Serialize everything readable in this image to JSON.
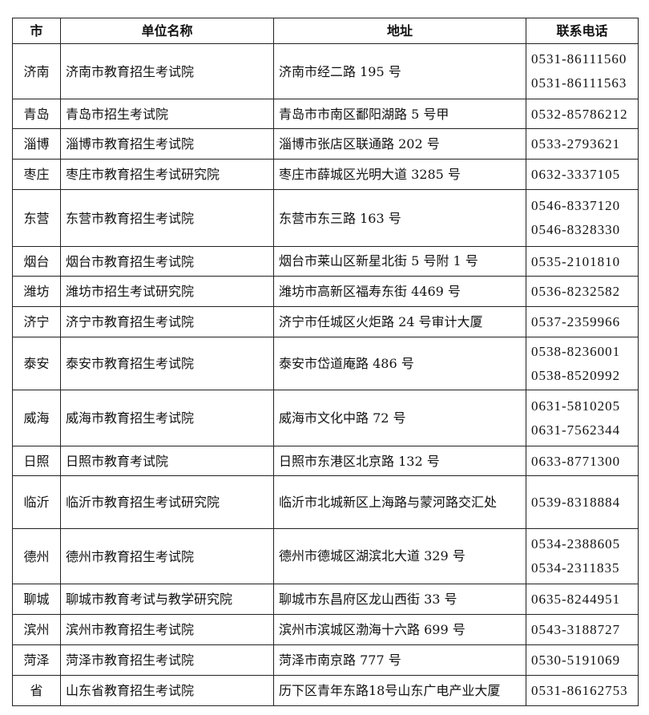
{
  "headers": {
    "city": "市",
    "unit": "单位名称",
    "address": "地址",
    "phone": "联系电话"
  },
  "rows": [
    {
      "city": "济南",
      "unit": "济南市教育招生考试院",
      "address": "济南市经二路 195 号",
      "phones": [
        "0531-86111560",
        "0531-86111563"
      ]
    },
    {
      "city": "青岛",
      "unit": "青岛市招生考试院",
      "address": "青岛市市南区鄱阳湖路 5 号甲",
      "phones": [
        "0532-85786212"
      ]
    },
    {
      "city": "淄博",
      "unit": "淄博市教育招生考试院",
      "address": "淄博市张店区联通路 202 号",
      "phones": [
        "0533-2793621"
      ]
    },
    {
      "city": "枣庄",
      "unit": "枣庄市教育招生考试研究院",
      "address": "枣庄市薛城区光明大道 3285 号",
      "phones": [
        "0632-3337105"
      ]
    },
    {
      "city": "东营",
      "unit": "东营市教育招生考试院",
      "address": "东营市东三路 163 号",
      "phones": [
        "0546-8337120",
        "0546-8328330"
      ]
    },
    {
      "city": "烟台",
      "unit": "烟台市教育招生考试院",
      "address": "烟台市莱山区新星北街 5 号附 1 号",
      "phones": [
        "0535-2101810"
      ]
    },
    {
      "city": "潍坊",
      "unit": "潍坊市招生考试研究院",
      "address": "潍坊市高新区福寿东街 4469 号",
      "phones": [
        "0536-8232582"
      ]
    },
    {
      "city": "济宁",
      "unit": "济宁市教育招生考试院",
      "address": "济宁市任城区火炬路 24 号审计大厦",
      "phones": [
        "0537-2359966"
      ]
    },
    {
      "city": "泰安",
      "unit": "泰安市教育招生考试院",
      "address": "泰安市岱道庵路 486 号",
      "phones": [
        "0538-8236001",
        "0538-8520992"
      ]
    },
    {
      "city": "威海",
      "unit": "威海市教育招生考试院",
      "address": "威海市文化中路 72 号",
      "phones": [
        "0631-5810205",
        "0631-7562344"
      ]
    },
    {
      "city": "日照",
      "unit": "日照市教育考试院",
      "address": "日照市东港区北京路 132 号",
      "phones": [
        "0633-8771300"
      ]
    },
    {
      "city": "临沂",
      "unit": "临沂市教育招生考试研究院",
      "address": "临沂市北城新区上海路与蒙河路交汇处",
      "phones": [
        "0539-8318884"
      ]
    },
    {
      "city": "德州",
      "unit": "德州市教育招生考试院",
      "address": "德州市德城区湖滨北大道 329 号",
      "phones": [
        "0534-2388605",
        "0534-2311835"
      ]
    },
    {
      "city": "聊城",
      "unit": "聊城市教育考试与教学研究院",
      "address": "聊城市东昌府区龙山西街 33 号",
      "phones": [
        "0635-8244951"
      ]
    },
    {
      "city": "滨州",
      "unit": "滨州市教育招生考试院",
      "address": "滨州市滨城区渤海十六路 699 号",
      "phones": [
        "0543-3188727"
      ]
    },
    {
      "city": "菏泽",
      "unit": "菏泽市教育招生考试院",
      "address": "菏泽市南京路 777 号",
      "phones": [
        "0530-5191069"
      ]
    },
    {
      "city": "省",
      "unit": "山东省教育招生考试院",
      "address": "历下区青年东路18号山东广电产业大厦",
      "phones": [
        "0531-86162753"
      ]
    }
  ]
}
